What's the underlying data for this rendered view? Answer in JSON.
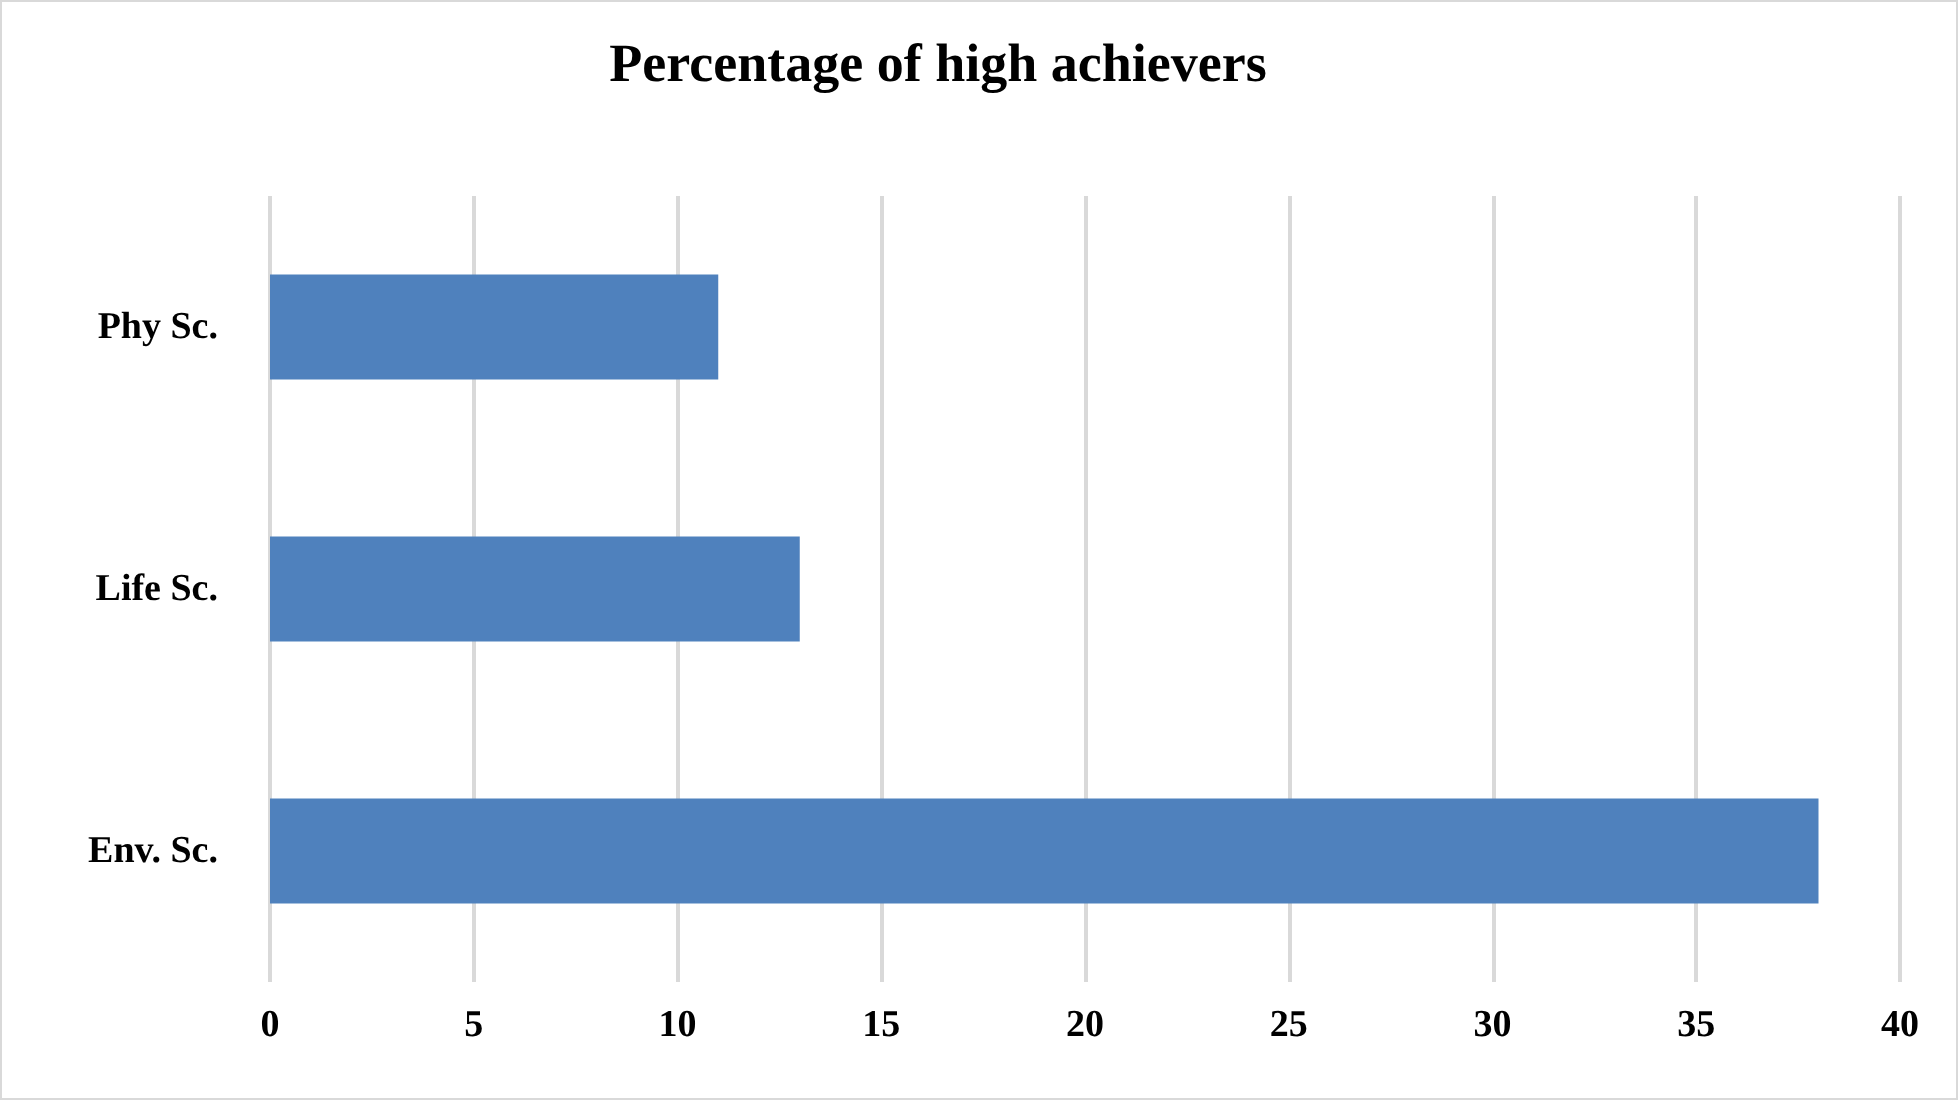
{
  "chart_data": {
    "type": "bar",
    "orientation": "horizontal",
    "title": "Percentage of high achievers",
    "categories": [
      "Phy Sc.",
      "Life Sc.",
      "Env. Sc."
    ],
    "values": [
      11,
      13,
      38
    ],
    "color": "#4f81bd",
    "xlim": [
      0,
      40
    ],
    "xticks": [
      0,
      5,
      10,
      15,
      20,
      25,
      30,
      35,
      40
    ],
    "grid": "x"
  }
}
